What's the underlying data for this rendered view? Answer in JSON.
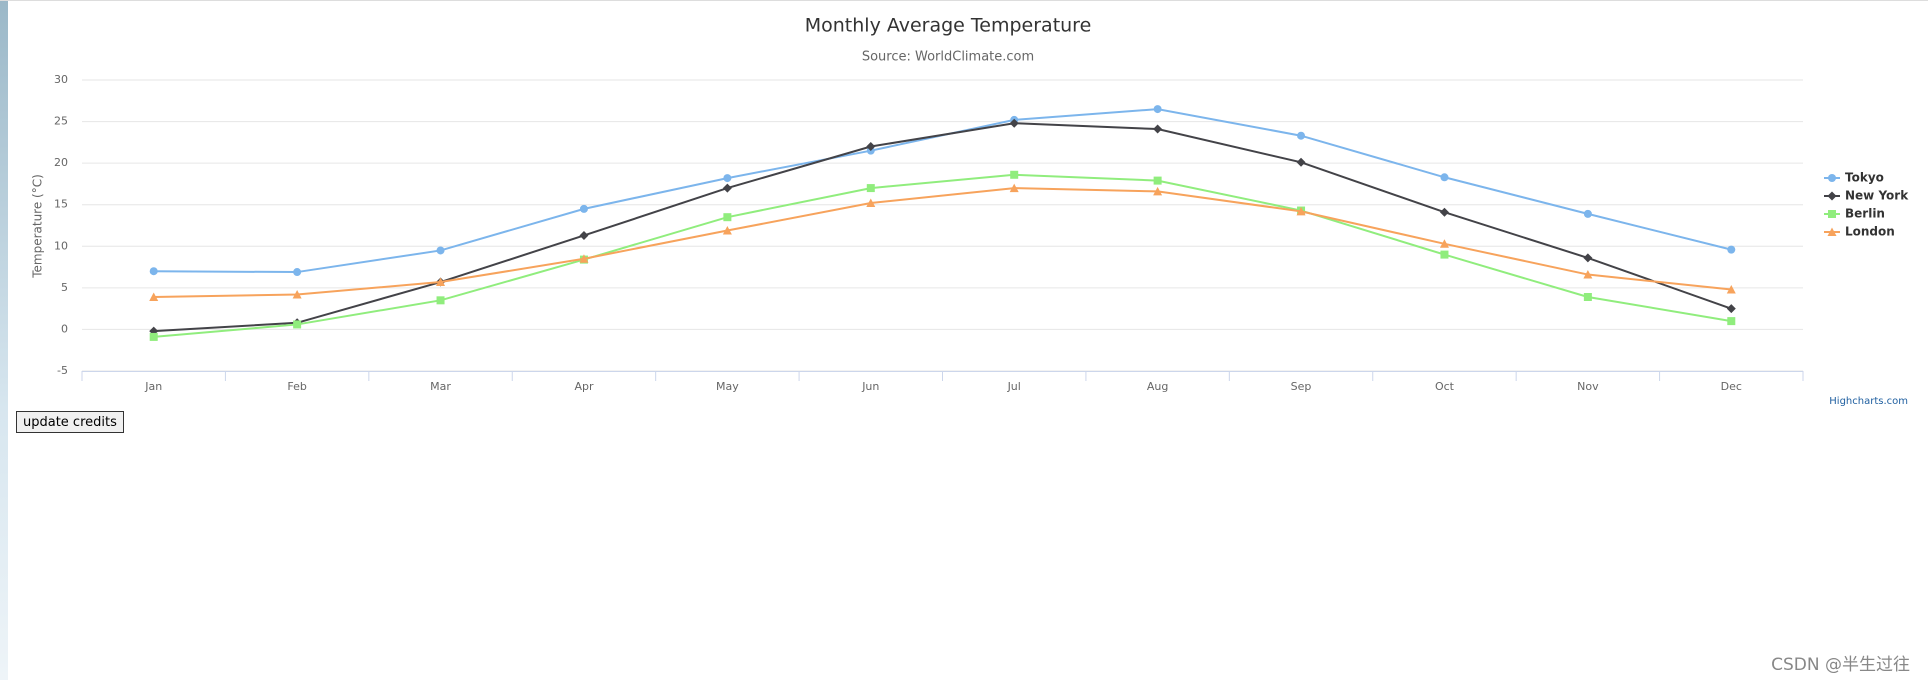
{
  "chart_data": {
    "type": "line",
    "title": "Monthly Average Temperature",
    "subtitle": "Source: WorldClimate.com",
    "y_label": "Temperature (°C)",
    "categories": [
      "Jan",
      "Feb",
      "Mar",
      "Apr",
      "May",
      "Jun",
      "Jul",
      "Aug",
      "Sep",
      "Oct",
      "Nov",
      "Dec"
    ],
    "series": [
      {
        "name": "Tokyo",
        "color": "#7cb5ec",
        "marker": "circle",
        "values": [
          7.0,
          6.9,
          9.5,
          14.5,
          18.2,
          21.5,
          25.2,
          26.5,
          23.3,
          18.3,
          13.9,
          9.6
        ]
      },
      {
        "name": "New York",
        "color": "#434348",
        "marker": "diamond",
        "values": [
          -0.2,
          0.8,
          5.7,
          11.3,
          17.0,
          22.0,
          24.8,
          24.1,
          20.1,
          14.1,
          8.6,
          2.5
        ]
      },
      {
        "name": "Berlin",
        "color": "#90ed7d",
        "marker": "square",
        "values": [
          -0.9,
          0.6,
          3.5,
          8.4,
          13.5,
          17.0,
          18.6,
          17.9,
          14.3,
          9.0,
          3.9,
          1.0
        ]
      },
      {
        "name": "London",
        "color": "#f7a35c",
        "marker": "triangle",
        "values": [
          3.9,
          4.2,
          5.7,
          8.5,
          11.9,
          15.2,
          17.0,
          16.6,
          14.2,
          10.3,
          6.6,
          4.8
        ]
      }
    ],
    "ylim": [
      -5,
      30
    ],
    "yticks": [
      -5,
      0,
      5,
      10,
      15,
      20,
      25,
      30
    ],
    "grid": true,
    "legend": "right",
    "credits": "Highcharts.com"
  },
  "button": "update credits",
  "watermark": "CSDN @半生过往"
}
